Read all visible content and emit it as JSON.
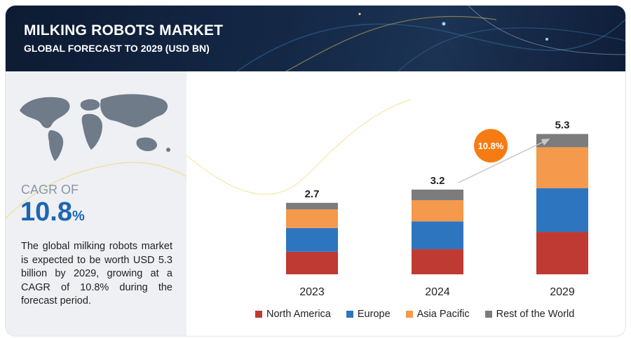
{
  "header": {
    "title": "MILKING ROBOTS MARKET",
    "subtitle": "GLOBAL FORECAST TO 2029 (USD BN)"
  },
  "summary": {
    "cagr_label": "CAGR OF",
    "cagr_number": "10.8",
    "cagr_unit": "%",
    "description": "The global milking robots market is expected to be worth USD 5.3 billion by 2029, growing at a CAGR of 10.8% during the forecast period."
  },
  "chart_data": {
    "type": "bar",
    "stacked": true,
    "title": "MILKING ROBOTS MARKET",
    "subtitle": "GLOBAL FORECAST TO 2029 (USD BN)",
    "categories": [
      "2023",
      "2024",
      "2029"
    ],
    "totals": [
      2.7,
      3.2,
      5.3
    ],
    "total_labels": [
      "2.7",
      "3.2",
      "5.3"
    ],
    "series": [
      {
        "name": "North America",
        "color": "#bf3a32",
        "values": [
          0.85,
          0.95,
          1.6
        ]
      },
      {
        "name": "Europe",
        "color": "#2e75c0",
        "values": [
          0.9,
          1.05,
          1.65
        ]
      },
      {
        "name": "Asia Pacific",
        "color": "#f5994c",
        "values": [
          0.7,
          0.8,
          1.55
        ]
      },
      {
        "name": "Rest of the World",
        "color": "#7c7c7c",
        "values": [
          0.25,
          0.4,
          0.5
        ]
      }
    ],
    "annotation": {
      "label": "10.8%",
      "color": "#f57c12"
    },
    "xlabel": "",
    "ylabel": "",
    "ylim": [
      0,
      6
    ],
    "grid": false,
    "legend": "bottom"
  }
}
